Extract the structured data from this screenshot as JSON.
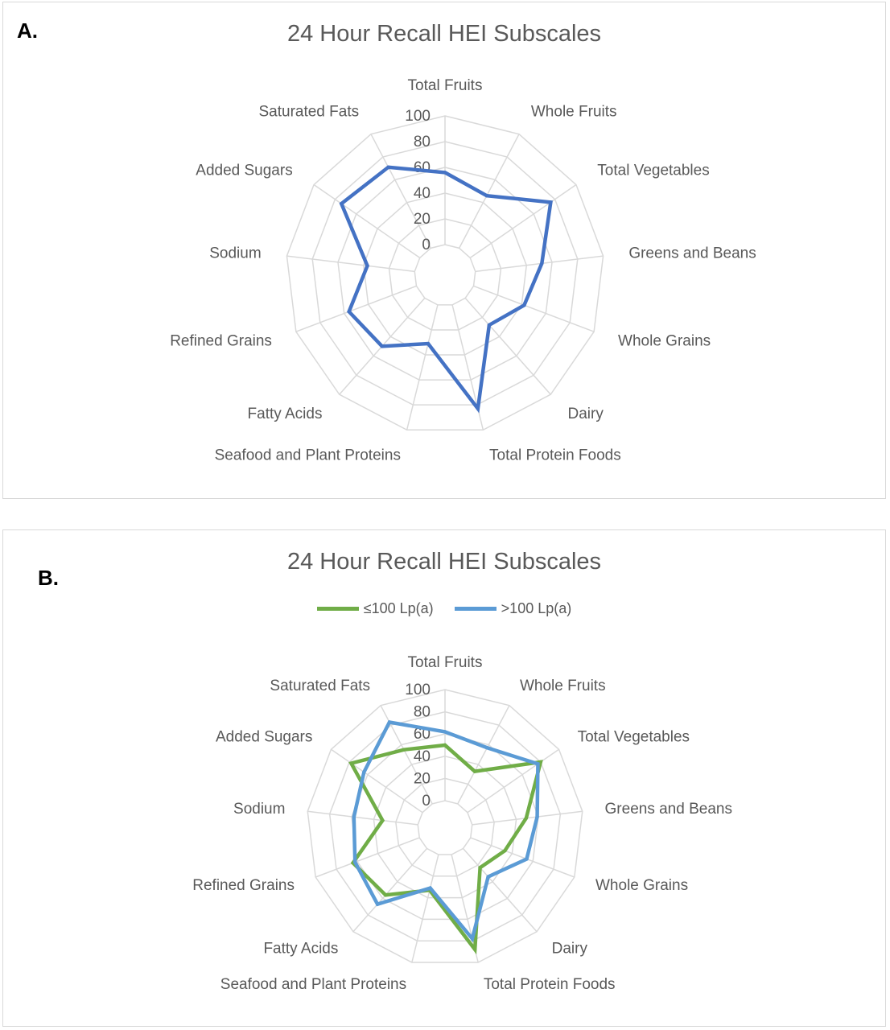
{
  "panels": [
    {
      "letter": "A.",
      "chart_title": "24 Hour Recall HEI Subscales"
    },
    {
      "letter": "B.",
      "chart_title": "24 Hour Recall HEI Subscales"
    }
  ],
  "chart_data": [
    {
      "type": "radar",
      "title": "24 Hour Recall HEI Subscales",
      "categories": [
        "Total Fruits",
        "Whole Fruits",
        "Total Vegetables",
        "Greens and Beans",
        "Whole Grains",
        "Dairy",
        "Total Protein Foods",
        "Seafood and Plant Proteins",
        "Fatty Acids",
        "Refined Grains",
        "Sodium",
        "Added Sugars",
        "Saturated Fats"
      ],
      "radial_ticks": [
        "0",
        "20",
        "40",
        "60",
        "80",
        "100"
      ],
      "rlim": [
        0,
        100
      ],
      "grid": true,
      "series": [
        {
          "values": [
            56,
            46,
            76,
            52,
            42,
            28,
            83,
            31,
            50,
            56,
            37,
            74,
            71
          ],
          "color": "#4472c4"
        }
      ]
    },
    {
      "type": "radar",
      "title": "24 Hour Recall HEI Subscales",
      "categories": [
        "Total Fruits",
        "Whole Fruits",
        "Total Vegetables",
        "Greens and Beans",
        "Whole Grains",
        "Dairy",
        "Total Protein Foods",
        "Seafood and Plant Proteins",
        "Fatty Acids",
        "Refined Grains",
        "Sodium",
        "Added Sugars",
        "Saturated Fats"
      ],
      "radial_ticks": [
        "0",
        "20",
        "40",
        "60",
        "80",
        "100"
      ],
      "rlim": [
        0,
        100
      ],
      "grid": true,
      "legend_position": "top",
      "series": [
        {
          "name": "≤100 Lp(a)",
          "values": [
            50,
            33,
            80,
            49,
            33,
            23,
            88,
            33,
            56,
            64,
            32,
            78,
            55
          ],
          "color": "#70ad47"
        },
        {
          "name": ">100 Lp(a)",
          "values": [
            62,
            57,
            77,
            59,
            54,
            34,
            78,
            31,
            67,
            62,
            58,
            64,
            83
          ],
          "color": "#5b9bd5"
        }
      ]
    }
  ]
}
